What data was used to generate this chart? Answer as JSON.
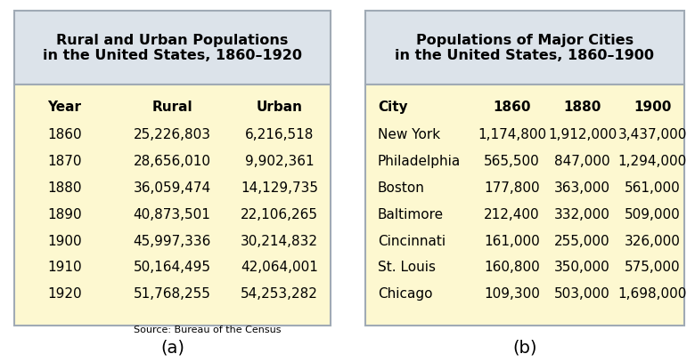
{
  "table_a": {
    "title": "Rural and Urban Populations\nin the United States, 1860–1920",
    "headers": [
      "Year",
      "Rural",
      "Urban"
    ],
    "rows": [
      [
        "1860",
        "25,226,803",
        "6,216,518"
      ],
      [
        "1870",
        "28,656,010",
        "9,902,361"
      ],
      [
        "1880",
        "36,059,474",
        "14,129,735"
      ],
      [
        "1890",
        "40,873,501",
        "22,106,265"
      ],
      [
        "1900",
        "45,997,336",
        "30,214,832"
      ],
      [
        "1910",
        "50,164,495",
        "42,064,001"
      ],
      [
        "1920",
        "51,768,255",
        "54,253,282"
      ]
    ],
    "source": "Source: Bureau of the Census",
    "label": "(a)"
  },
  "table_b": {
    "title": "Populations of Major Cities\nin the United States, 1860–1900",
    "headers": [
      "City",
      "1860",
      "1880",
      "1900"
    ],
    "rows": [
      [
        "New York",
        "1,174,800",
        "1,912,000",
        "3,437,000"
      ],
      [
        "Philadelphia",
        "565,500",
        "847,000",
        "1,294,000"
      ],
      [
        "Boston",
        "177,800",
        "363,000",
        "561,000"
      ],
      [
        "Baltimore",
        "212,400",
        "332,000",
        "509,000"
      ],
      [
        "Cincinnati",
        "161,000",
        "255,000",
        "326,000"
      ],
      [
        "St. Louis",
        "160,800",
        "350,000",
        "575,000"
      ],
      [
        "Chicago",
        "109,300",
        "503,000",
        "1,698,000"
      ]
    ],
    "label": "(b)"
  },
  "header_bg": "#dce3ea",
  "body_bg": "#fdf8d0",
  "border_color": "#a0aab5",
  "title_fontsize": 11.5,
  "header_fontsize": 11,
  "body_fontsize": 11,
  "source_fontsize": 8,
  "label_fontsize": 14,
  "fig_bg": "#ffffff"
}
